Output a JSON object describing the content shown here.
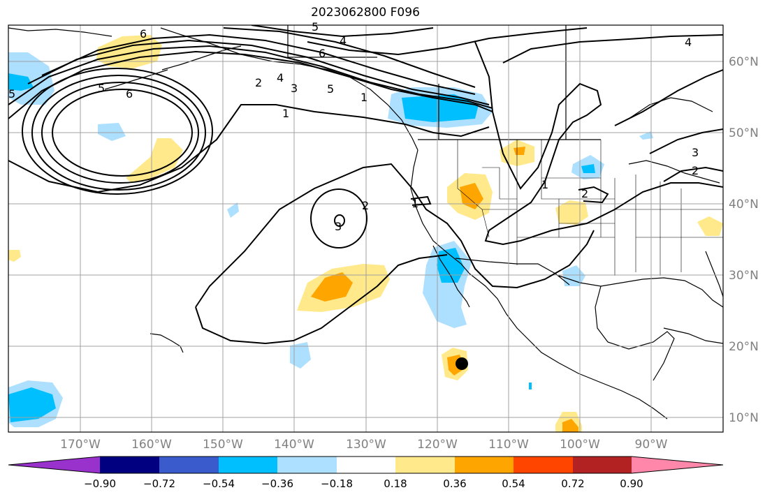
{
  "title": "2023062800 F096",
  "colors": {
    "bins": [
      "#9932CC",
      "#000080",
      "#3A5BCB",
      "#00BFFF",
      "#ADDFFF",
      "#FFFFFF",
      "#FFE98A",
      "#FFA500",
      "#FF4500",
      "#B22222",
      "#FF88AA"
    ],
    "contour": "#000000",
    "grid": "#a0a0a0",
    "coast": "#000000"
  },
  "lon_ticks": [
    "170°W",
    "160°W",
    "150°W",
    "140°W",
    "130°W",
    "120°W",
    "110°W",
    "100°W",
    "90°W"
  ],
  "lat_ticks": [
    "60°N",
    "50°N",
    "40°N",
    "30°N",
    "20°N",
    "10°N"
  ],
  "colorbar": {
    "ticks": [
      "−0.90",
      "−0.72",
      "−0.54",
      "−0.36",
      "−0.18",
      "0.18",
      "0.36",
      "0.54",
      "0.72",
      "0.90"
    ]
  },
  "contour_labels": [
    "6",
    "5",
    "4",
    "6",
    "5",
    "2",
    "4",
    "3",
    "1",
    "4",
    "5",
    "6",
    "1",
    "2",
    "3",
    "1",
    "1",
    "2",
    "3",
    "2",
    "5",
    "1"
  ],
  "marker": {
    "label": "storm-center",
    "lon": -116.5,
    "lat": 17.5
  }
}
